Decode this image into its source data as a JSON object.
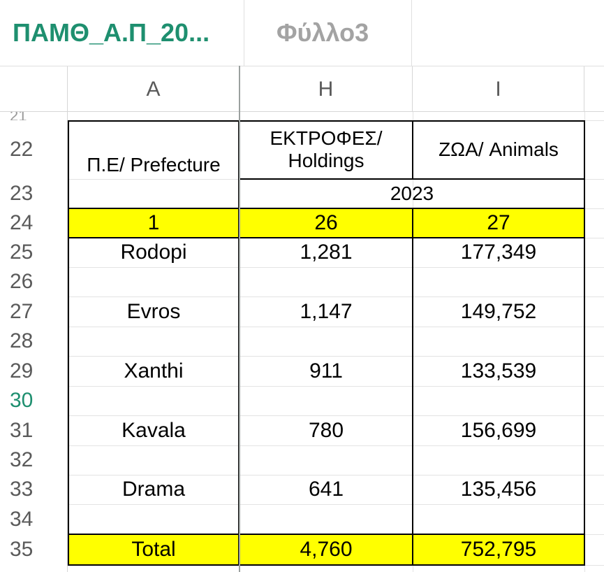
{
  "tabs": [
    {
      "label": "ΠΑΜΘ_Α.Π_20...",
      "active": true
    },
    {
      "label": "Φύλλο3",
      "active": false
    }
  ],
  "columns": [
    "A",
    "H",
    "I"
  ],
  "rows": [
    "21",
    "22",
    "23",
    "24",
    "25",
    "26",
    "27",
    "28",
    "29",
    "30",
    "31",
    "32",
    "33",
    "34",
    "35"
  ],
  "selected_row": "30",
  "table": {
    "header_prefecture": "Π.Ε/ Prefecture",
    "header_holdings_line1": "ΕΚΤΡΟΦΕΣ/",
    "header_holdings_line2": "Holdings",
    "header_animals": "ΖΩΑ/ Animals",
    "year": "2023",
    "col_numbers": [
      "1",
      "26",
      "27"
    ],
    "data": [
      {
        "prefecture": "Rodopi",
        "holdings": "1,281",
        "animals": "177,349"
      },
      {
        "prefecture": "Evros",
        "holdings": "1,147",
        "animals": "149,752"
      },
      {
        "prefecture": "Xanthi",
        "holdings": "911",
        "animals": "133,539"
      },
      {
        "prefecture": "Kavala",
        "holdings": "780",
        "animals": "156,699"
      },
      {
        "prefecture": "Drama",
        "holdings": "641",
        "animals": "135,456"
      }
    ],
    "total": {
      "prefecture": "Total",
      "holdings": "4,760",
      "animals": "752,795"
    }
  },
  "colors": {
    "accent": "#1e8f6f",
    "highlight": "#ffff00",
    "gridline": "#e3e3e3"
  }
}
